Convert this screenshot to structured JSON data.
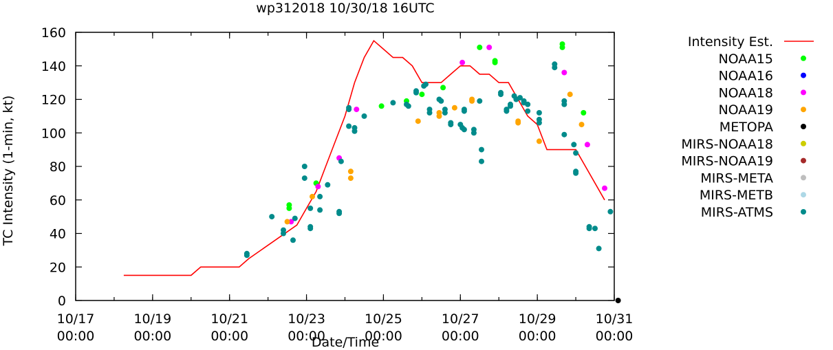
{
  "chart_data": {
    "type": "scatter",
    "title": "wp312018 10/30/18 16UTC",
    "xlabel": "Date/Time",
    "ylabel": "TC Intensity (1-min, kt)",
    "x_unit": "days since 10/17 00:00",
    "xlim": [
      0,
      14
    ],
    "ylim": [
      0,
      160
    ],
    "yticks": [
      0,
      20,
      40,
      60,
      80,
      100,
      120,
      140,
      160
    ],
    "xticks": [
      {
        "x": 0,
        "line1": "10/17",
        "line2": "00:00"
      },
      {
        "x": 2,
        "line1": "10/19",
        "line2": "00:00"
      },
      {
        "x": 4,
        "line1": "10/21",
        "line2": "00:00"
      },
      {
        "x": 6,
        "line1": "10/23",
        "line2": "00:00"
      },
      {
        "x": 8,
        "line1": "10/25",
        "line2": "00:00"
      },
      {
        "x": 10,
        "line1": "10/27",
        "line2": "00:00"
      },
      {
        "x": 12,
        "line1": "10/29",
        "line2": "00:00"
      },
      {
        "x": 14,
        "line1": "10/31",
        "line2": "00:00"
      }
    ],
    "grid": false,
    "legend_position": "right",
    "series": [
      {
        "name": "Intensity Est.",
        "kind": "line",
        "color": "#ff0000",
        "points": [
          [
            1.25,
            15
          ],
          [
            3,
            15
          ],
          [
            3.25,
            20
          ],
          [
            4.25,
            20
          ],
          [
            4.5,
            25
          ],
          [
            5.75,
            45
          ],
          [
            6,
            55
          ],
          [
            6.25,
            65
          ],
          [
            6.5,
            80
          ],
          [
            6.75,
            95
          ],
          [
            7,
            110
          ],
          [
            7.25,
            130
          ],
          [
            7.5,
            145
          ],
          [
            7.75,
            155
          ],
          [
            8,
            150
          ],
          [
            8.25,
            145
          ],
          [
            8.5,
            145
          ],
          [
            8.75,
            140
          ],
          [
            9,
            130
          ],
          [
            9.5,
            130
          ],
          [
            9.75,
            135
          ],
          [
            10,
            140
          ],
          [
            10.25,
            140
          ],
          [
            10.5,
            135
          ],
          [
            10.75,
            135
          ],
          [
            11,
            130
          ],
          [
            11.25,
            130
          ],
          [
            11.5,
            120
          ],
          [
            11.75,
            110
          ],
          [
            12,
            105
          ],
          [
            12.25,
            90
          ],
          [
            13,
            90
          ],
          [
            13.25,
            80
          ],
          [
            13.75,
            60
          ]
        ]
      },
      {
        "name": "NOAA15",
        "kind": "points",
        "color": "#00ff00",
        "points": [
          [
            5.55,
            57
          ],
          [
            5.55,
            55
          ],
          [
            6.25,
            70
          ],
          [
            7.95,
            116
          ],
          [
            8.6,
            119
          ],
          [
            9,
            123
          ],
          [
            9.55,
            127
          ],
          [
            10.5,
            151
          ],
          [
            10.9,
            143
          ],
          [
            10.9,
            142
          ],
          [
            12.65,
            153
          ],
          [
            12.65,
            151
          ],
          [
            13.2,
            112
          ]
        ]
      },
      {
        "name": "NOAA16",
        "kind": "points",
        "color": "#0000ff",
        "points": []
      },
      {
        "name": "NOAA18",
        "kind": "points",
        "color": "#ff00ff",
        "points": [
          [
            5.6,
            47
          ],
          [
            6.3,
            68
          ],
          [
            6.85,
            85
          ],
          [
            7.3,
            114
          ],
          [
            10.05,
            142
          ],
          [
            10.75,
            151
          ],
          [
            12.7,
            136
          ],
          [
            13.3,
            93
          ],
          [
            13.75,
            67
          ]
        ]
      },
      {
        "name": "NOAA19",
        "kind": "points",
        "color": "#ffa500",
        "points": [
          [
            5.5,
            47
          ],
          [
            6.15,
            62
          ],
          [
            7.15,
            77
          ],
          [
            7.15,
            73
          ],
          [
            8.9,
            107
          ],
          [
            9.45,
            112
          ],
          [
            9.45,
            110
          ],
          [
            9.85,
            115
          ],
          [
            10.3,
            120
          ],
          [
            10.3,
            119
          ],
          [
            11.5,
            107
          ],
          [
            11.5,
            106
          ],
          [
            12.05,
            95
          ],
          [
            12.85,
            123
          ],
          [
            13.15,
            105
          ]
        ]
      },
      {
        "name": "METOPA",
        "kind": "points",
        "color": "#000000",
        "points": [
          [
            14.1,
            0
          ]
        ]
      },
      {
        "name": "MIRS-NOAA18",
        "kind": "points",
        "color": "#cdcd00",
        "points": []
      },
      {
        "name": "MIRS-NOAA19",
        "kind": "points",
        "color": "#a52a2a",
        "points": []
      },
      {
        "name": "MIRS-META",
        "kind": "points",
        "color": "#bebebe",
        "points": []
      },
      {
        "name": "MIRS-METB",
        "kind": "points",
        "color": "#add8e6",
        "points": []
      },
      {
        "name": "MIRS-ATMS",
        "kind": "points",
        "color": "#008b8b",
        "points": [
          [
            4.45,
            28
          ],
          [
            4.45,
            27
          ],
          [
            5.1,
            50
          ],
          [
            5.4,
            42
          ],
          [
            5.4,
            40
          ],
          [
            5.65,
            36
          ],
          [
            5.7,
            49
          ],
          [
            5.95,
            80
          ],
          [
            5.95,
            73
          ],
          [
            6.1,
            55
          ],
          [
            6.1,
            44
          ],
          [
            6.1,
            43
          ],
          [
            6.35,
            62
          ],
          [
            6.35,
            54
          ],
          [
            6.55,
            69
          ],
          [
            6.85,
            53
          ],
          [
            6.85,
            52
          ],
          [
            6.9,
            83
          ],
          [
            7.1,
            115
          ],
          [
            7.1,
            114
          ],
          [
            7.1,
            104
          ],
          [
            7.25,
            103
          ],
          [
            7.25,
            101
          ],
          [
            7.5,
            110
          ],
          [
            8.25,
            118
          ],
          [
            8.6,
            117
          ],
          [
            8.65,
            116
          ],
          [
            8.85,
            125
          ],
          [
            8.85,
            124
          ],
          [
            9.05,
            128
          ],
          [
            9.1,
            129
          ],
          [
            9.2,
            114
          ],
          [
            9.2,
            112
          ],
          [
            9.45,
            120
          ],
          [
            9.5,
            119
          ],
          [
            9.6,
            114
          ],
          [
            9.6,
            112
          ],
          [
            9.75,
            106
          ],
          [
            9.75,
            105
          ],
          [
            10.0,
            105
          ],
          [
            10.05,
            103
          ],
          [
            10.1,
            114
          ],
          [
            10.1,
            113
          ],
          [
            10.1,
            102
          ],
          [
            10.35,
            102
          ],
          [
            10.35,
            100
          ],
          [
            10.5,
            119
          ],
          [
            10.55,
            90
          ],
          [
            10.55,
            83
          ],
          [
            11.05,
            124
          ],
          [
            11.05,
            123
          ],
          [
            11.2,
            114
          ],
          [
            11.2,
            113
          ],
          [
            11.3,
            117
          ],
          [
            11.3,
            116
          ],
          [
            11.4,
            122
          ],
          [
            11.45,
            120
          ],
          [
            11.55,
            121
          ],
          [
            11.65,
            119
          ],
          [
            11.65,
            118
          ],
          [
            11.75,
            117
          ],
          [
            11.75,
            113
          ],
          [
            12.05,
            112
          ],
          [
            12.05,
            108
          ],
          [
            12.05,
            106
          ],
          [
            12.45,
            141
          ],
          [
            12.45,
            139
          ],
          [
            12.7,
            119
          ],
          [
            12.7,
            117
          ],
          [
            12.7,
            99
          ],
          [
            12.95,
            93
          ],
          [
            13.0,
            88
          ],
          [
            13.0,
            77
          ],
          [
            13.0,
            76
          ],
          [
            13.35,
            44
          ],
          [
            13.35,
            43
          ],
          [
            13.5,
            43
          ],
          [
            13.6,
            31
          ],
          [
            13.9,
            53
          ]
        ]
      }
    ]
  }
}
